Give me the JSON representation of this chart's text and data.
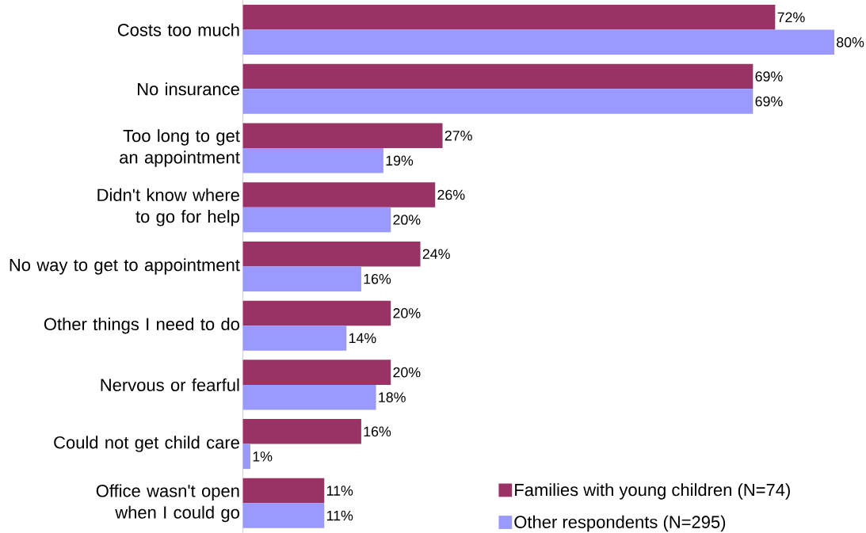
{
  "chart_data": {
    "type": "bar",
    "orientation": "horizontal",
    "legend": "bottom right",
    "categories": [
      "Costs too much",
      "No insurance",
      "Too long to get an appointment",
      "Didn't know where to go for help",
      "No way to get to appointment",
      "Other things I need to do",
      "Nervous or fearful",
      "Could not get child care",
      "Office wasn't open when I could go"
    ],
    "series": [
      {
        "name": "Families with young children (N=74)",
        "color": "#993366",
        "values": [
          72,
          69,
          27,
          26,
          24,
          20,
          20,
          16,
          11
        ],
        "value_labels": [
          "72%",
          "69%",
          "27%",
          "26%",
          "24%",
          "20%",
          "20%",
          "16%",
          "11%"
        ]
      },
      {
        "name": "Other respondents (N=295)",
        "color": "#9999ff",
        "values": [
          80,
          69,
          19,
          20,
          16,
          14,
          18,
          1,
          11
        ],
        "value_labels": [
          "80%",
          "69%",
          "19%",
          "20%",
          "16%",
          "14%",
          "18%",
          "1%",
          "11%"
        ]
      }
    ]
  }
}
